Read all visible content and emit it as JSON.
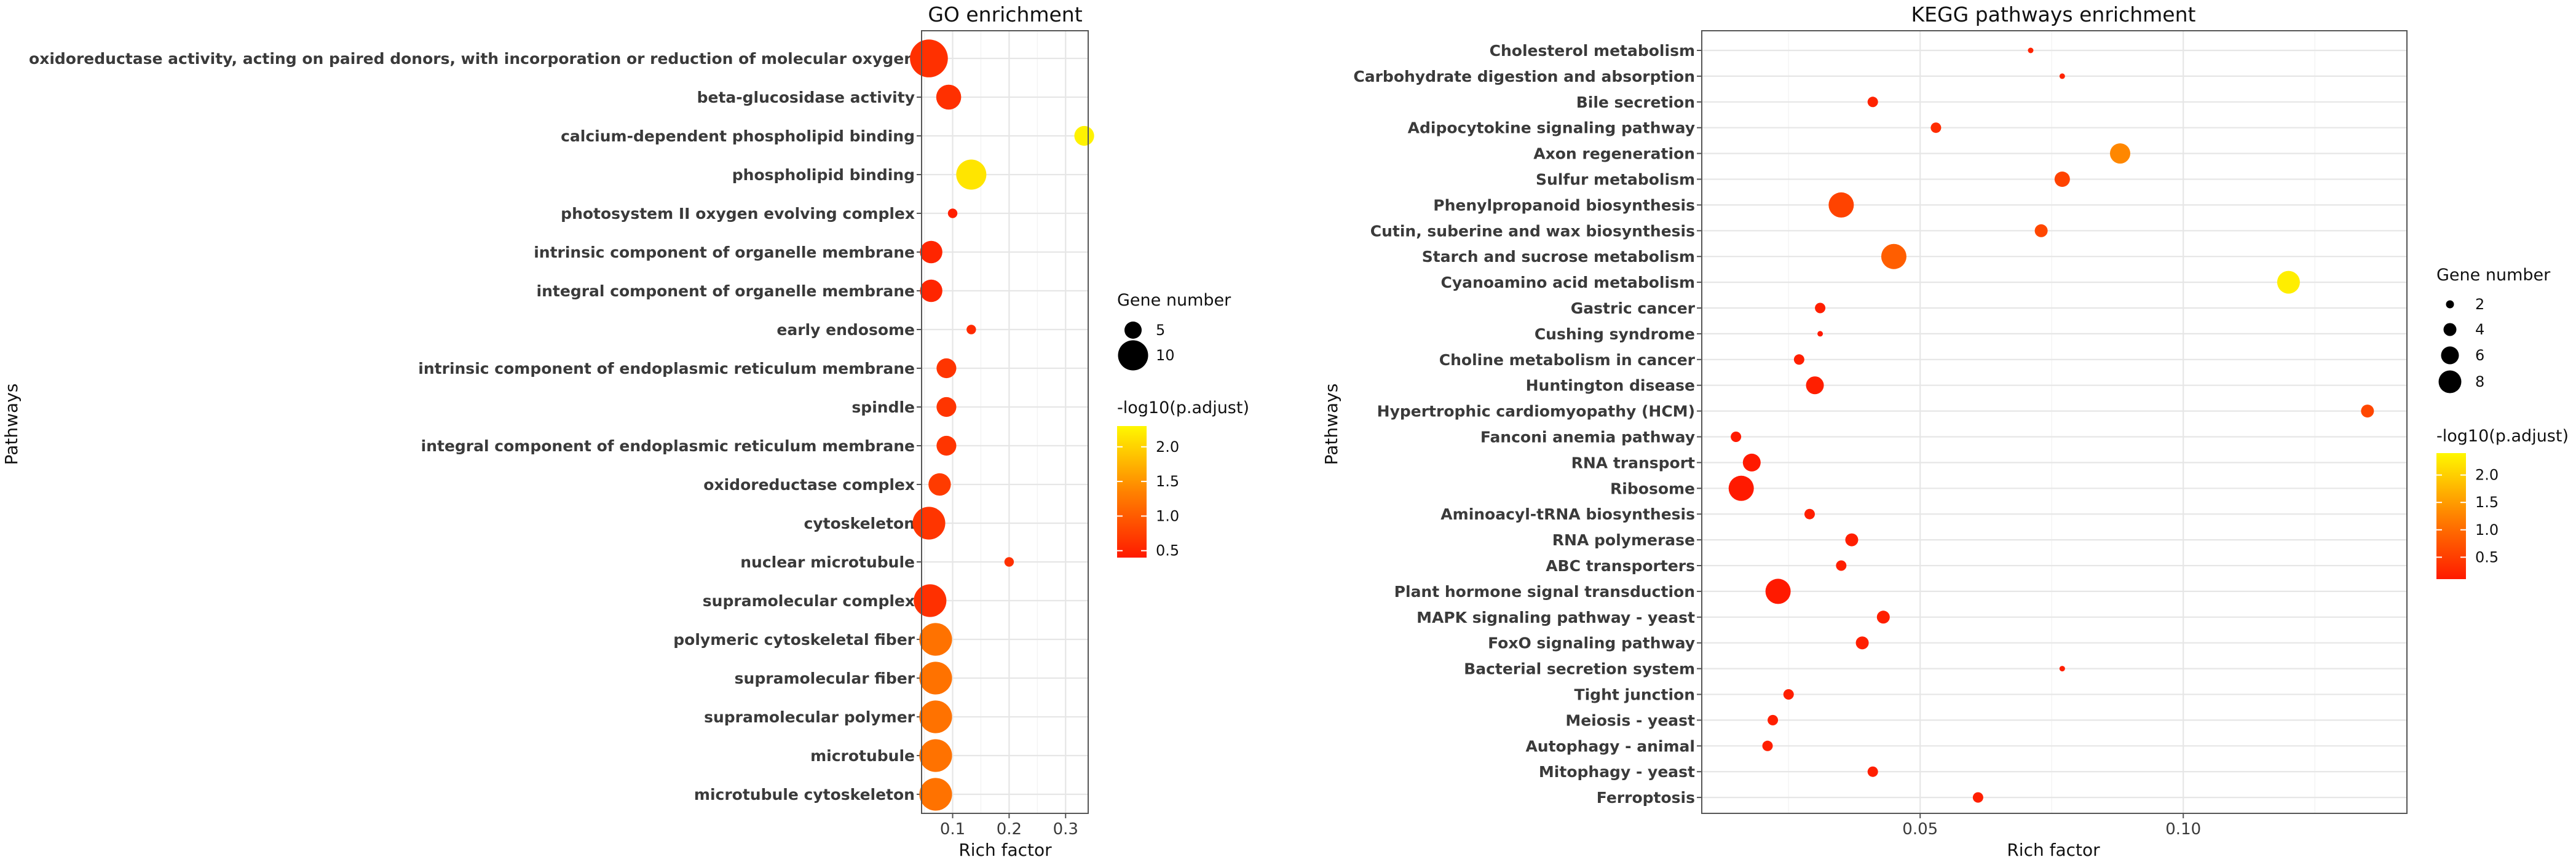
{
  "chart_data": [
    {
      "type": "scatter",
      "title": "GO enrichment",
      "xlabel": "Rich factor",
      "ylabel": "Pathways",
      "xlim": [
        0.045,
        0.34
      ],
      "xticks": [
        0.1,
        0.2,
        0.3
      ],
      "xtick_labels": [
        "0.1",
        "0.2",
        "0.3"
      ],
      "size_legend_title": "Gene number",
      "size_legend": [
        {
          "label": "5",
          "value": 5
        },
        {
          "label": "10",
          "value": 10
        }
      ],
      "color_legend_title": "-log10(p.adjust)",
      "color_range": [
        0.4,
        2.3
      ],
      "color_legend": [
        {
          "label": "2.0",
          "value": 2.0
        },
        {
          "label": "1.5",
          "value": 1.5
        },
        {
          "label": "1.0",
          "value": 1.0
        },
        {
          "label": "0.5",
          "value": 0.5
        }
      ],
      "points": [
        {
          "label": "oxidoreductase activity, acting on paired donors, with incorporation or reduction of molecular oxygen",
          "rich_factor": 0.058,
          "gene_number": 13,
          "neg_log10_padj": 0.6
        },
        {
          "label": "beta-glucosidase activity",
          "rich_factor": 0.093,
          "gene_number": 8,
          "neg_log10_padj": 0.6
        },
        {
          "label": "calcium-dependent phospholipid binding",
          "rich_factor": 0.333,
          "gene_number": 6,
          "neg_log10_padj": 2.25
        },
        {
          "label": "phospholipid binding",
          "rich_factor": 0.133,
          "gene_number": 10,
          "neg_log10_padj": 2.15
        },
        {
          "label": "photosystem II oxygen evolving complex",
          "rich_factor": 0.1,
          "gene_number": 2,
          "neg_log10_padj": 0.45
        },
        {
          "label": "intrinsic component of organelle membrane",
          "rich_factor": 0.062,
          "gene_number": 7,
          "neg_log10_padj": 0.5
        },
        {
          "label": "integral component of organelle membrane",
          "rich_factor": 0.062,
          "gene_number": 7,
          "neg_log10_padj": 0.5
        },
        {
          "label": "early endosome",
          "rich_factor": 0.133,
          "gene_number": 2,
          "neg_log10_padj": 0.55
        },
        {
          "label": "intrinsic component of endoplasmic reticulum membrane",
          "rich_factor": 0.089,
          "gene_number": 6,
          "neg_log10_padj": 0.65
        },
        {
          "label": "spindle",
          "rich_factor": 0.089,
          "gene_number": 6,
          "neg_log10_padj": 0.65
        },
        {
          "label": "integral component of endoplasmic reticulum membrane",
          "rich_factor": 0.089,
          "gene_number": 6,
          "neg_log10_padj": 0.65
        },
        {
          "label": "oxidoreductase complex",
          "rich_factor": 0.077,
          "gene_number": 7,
          "neg_log10_padj": 0.7
        },
        {
          "label": "cytoskeleton",
          "rich_factor": 0.058,
          "gene_number": 11,
          "neg_log10_padj": 0.65
        },
        {
          "label": "nuclear microtubule",
          "rich_factor": 0.2,
          "gene_number": 2,
          "neg_log10_padj": 0.6
        },
        {
          "label": "supramolecular complex",
          "rich_factor": 0.06,
          "gene_number": 11,
          "neg_log10_padj": 0.6
        },
        {
          "label": "polymeric cytoskeletal fiber",
          "rich_factor": 0.07,
          "gene_number": 11,
          "neg_log10_padj": 1.2
        },
        {
          "label": "supramolecular fiber",
          "rich_factor": 0.07,
          "gene_number": 11,
          "neg_log10_padj": 1.2
        },
        {
          "label": "supramolecular polymer",
          "rich_factor": 0.07,
          "gene_number": 11,
          "neg_log10_padj": 1.2
        },
        {
          "label": "microtubule",
          "rich_factor": 0.07,
          "gene_number": 11,
          "neg_log10_padj": 1.2
        },
        {
          "label": "microtubule cytoskeleton",
          "rich_factor": 0.07,
          "gene_number": 11,
          "neg_log10_padj": 1.2
        }
      ]
    },
    {
      "type": "scatter",
      "title": "KEGG pathways enrichment",
      "xlabel": "Rich factor",
      "ylabel": "Pathways",
      "xlim": [
        0.0085,
        0.1425
      ],
      "xticks": [
        0.05,
        0.1
      ],
      "xtick_labels": [
        "0.05",
        "0.10"
      ],
      "size_legend_title": "Gene number",
      "size_legend": [
        {
          "label": "2",
          "value": 2
        },
        {
          "label": "4",
          "value": 4
        },
        {
          "label": "6",
          "value": 6
        },
        {
          "label": "8",
          "value": 8
        }
      ],
      "color_legend_title": "-log10(p.adjust)",
      "color_range": [
        0.1,
        2.4
      ],
      "color_legend": [
        {
          "label": "2.0",
          "value": 2.0
        },
        {
          "label": "1.5",
          "value": 1.5
        },
        {
          "label": "1.0",
          "value": 1.0
        },
        {
          "label": "0.5",
          "value": 0.5
        }
      ],
      "points": [
        {
          "label": "Cholesterol metabolism",
          "rich_factor": 0.071,
          "gene_number": 1,
          "neg_log10_padj": 0.2
        },
        {
          "label": "Carbohydrate digestion and absorption",
          "rich_factor": 0.077,
          "gene_number": 1,
          "neg_log10_padj": 0.2
        },
        {
          "label": "Bile secretion",
          "rich_factor": 0.041,
          "gene_number": 3,
          "neg_log10_padj": 0.2
        },
        {
          "label": "Adipocytokine signaling pathway",
          "rich_factor": 0.053,
          "gene_number": 3,
          "neg_log10_padj": 0.3
        },
        {
          "label": "Axon regeneration",
          "rich_factor": 0.088,
          "gene_number": 7,
          "neg_log10_padj": 1.3
        },
        {
          "label": "Sulfur metabolism",
          "rich_factor": 0.077,
          "gene_number": 5,
          "neg_log10_padj": 0.55
        },
        {
          "label": "Phenylpropanoid biosynthesis",
          "rich_factor": 0.035,
          "gene_number": 9,
          "neg_log10_padj": 0.55
        },
        {
          "label": "Cutin, suberine and wax biosynthesis",
          "rich_factor": 0.073,
          "gene_number": 4,
          "neg_log10_padj": 0.6
        },
        {
          "label": "Starch and sucrose metabolism",
          "rich_factor": 0.045,
          "gene_number": 9,
          "neg_log10_padj": 0.85
        },
        {
          "label": "Cyanoamino acid metabolism",
          "rich_factor": 0.12,
          "gene_number": 8,
          "neg_log10_padj": 2.3
        },
        {
          "label": "Gastric cancer",
          "rich_factor": 0.031,
          "gene_number": 3,
          "neg_log10_padj": 0.15
        },
        {
          "label": "Cushing syndrome",
          "rich_factor": 0.031,
          "gene_number": 1,
          "neg_log10_padj": 0.1
        },
        {
          "label": "Choline metabolism in cancer",
          "rich_factor": 0.027,
          "gene_number": 3,
          "neg_log10_padj": 0.15
        },
        {
          "label": "Huntington disease",
          "rich_factor": 0.03,
          "gene_number": 6,
          "neg_log10_padj": 0.15
        },
        {
          "label": "Hypertrophic cardiomyopathy (HCM)",
          "rich_factor": 0.135,
          "gene_number": 4,
          "neg_log10_padj": 0.6
        },
        {
          "label": "Fanconi anemia pathway",
          "rich_factor": 0.015,
          "gene_number": 3,
          "neg_log10_padj": 0.1
        },
        {
          "label": "RNA transport",
          "rich_factor": 0.018,
          "gene_number": 6,
          "neg_log10_padj": 0.1
        },
        {
          "label": "Ribosome",
          "rich_factor": 0.016,
          "gene_number": 9,
          "neg_log10_padj": 0.1
        },
        {
          "label": "Aminoacyl-tRNA biosynthesis",
          "rich_factor": 0.029,
          "gene_number": 3,
          "neg_log10_padj": 0.15
        },
        {
          "label": "RNA polymerase",
          "rich_factor": 0.037,
          "gene_number": 4,
          "neg_log10_padj": 0.15
        },
        {
          "label": "ABC transporters",
          "rich_factor": 0.035,
          "gene_number": 3,
          "neg_log10_padj": 0.15
        },
        {
          "label": "Plant hormone signal transduction",
          "rich_factor": 0.023,
          "gene_number": 9,
          "neg_log10_padj": 0.1
        },
        {
          "label": "MAPK signaling pathway - yeast",
          "rich_factor": 0.043,
          "gene_number": 4,
          "neg_log10_padj": 0.15
        },
        {
          "label": "FoxO signaling pathway",
          "rich_factor": 0.039,
          "gene_number": 4,
          "neg_log10_padj": 0.15
        },
        {
          "label": "Bacterial secretion system",
          "rich_factor": 0.077,
          "gene_number": 1,
          "neg_log10_padj": 0.15
        },
        {
          "label": "Tight junction",
          "rich_factor": 0.025,
          "gene_number": 3,
          "neg_log10_padj": 0.15
        },
        {
          "label": "Meiosis - yeast",
          "rich_factor": 0.022,
          "gene_number": 3,
          "neg_log10_padj": 0.15
        },
        {
          "label": "Autophagy - animal",
          "rich_factor": 0.021,
          "gene_number": 3,
          "neg_log10_padj": 0.15
        },
        {
          "label": "Mitophagy - yeast",
          "rich_factor": 0.041,
          "gene_number": 3,
          "neg_log10_padj": 0.15
        },
        {
          "label": "Ferroptosis",
          "rich_factor": 0.061,
          "gene_number": 3,
          "neg_log10_padj": 0.15
        }
      ]
    }
  ]
}
